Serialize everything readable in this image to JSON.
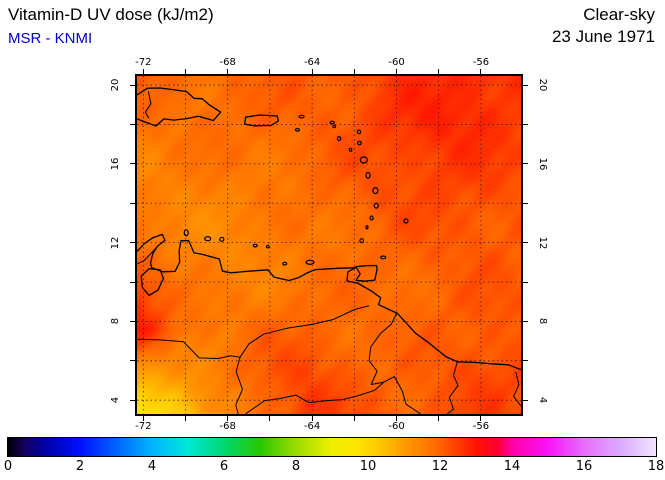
{
  "header": {
    "title": "Vitamin-D UV dose (kJ/m2)",
    "source": "MSR - KNMI",
    "condition": "Clear-sky",
    "date": "23 June 1971"
  },
  "chart_data": {
    "type": "heatmap",
    "title": "Vitamin-D UV dose (kJ/m2)",
    "subtitle": "MSR - KNMI",
    "condition": "Clear-sky",
    "date": "23 June 1971",
    "units": "kJ/m2",
    "lon_range": [
      -72.3,
      -54.1
    ],
    "lat_range": [
      3.3,
      20.46
    ],
    "tick_step_deg": 2,
    "lon_tick_labels": [
      "-72",
      "-68",
      "-64",
      "-60",
      "-56"
    ],
    "lon_tick_values": [
      -72,
      -68,
      -64,
      -60,
      -56
    ],
    "lat_tick_labels": [
      "20",
      "16",
      "12",
      "8",
      "4"
    ],
    "lat_tick_values": [
      20,
      16,
      12,
      8,
      4
    ],
    "grid": {
      "lons": [
        -72.3,
        -70.28,
        -68.26,
        -66.23,
        -64.21,
        -62.19,
        -60.17,
        -58.14,
        -56.12,
        -54.1
      ],
      "lats": [
        20.46,
        18.31,
        16.17,
        14.02,
        11.88,
        9.73,
        7.59,
        5.44,
        3.3
      ],
      "values": [
        [
          12.0,
          11.9,
          11.9,
          12.0,
          12.1,
          12.2,
          12.5,
          12.7,
          12.8,
          12.6
        ],
        [
          11.8,
          11.8,
          11.9,
          11.9,
          12.0,
          12.2,
          12.6,
          12.8,
          12.8,
          12.5
        ],
        [
          11.6,
          11.6,
          11.7,
          11.8,
          11.9,
          12.1,
          12.4,
          12.6,
          12.5,
          12.3
        ],
        [
          11.5,
          11.5,
          11.5,
          11.6,
          11.8,
          12.0,
          12.2,
          12.3,
          12.3,
          12.2
        ],
        [
          11.7,
          11.5,
          11.4,
          11.5,
          11.7,
          11.8,
          12.0,
          12.1,
          12.2,
          12.1
        ],
        [
          12.6,
          11.7,
          11.5,
          11.6,
          11.8,
          11.8,
          11.9,
          12.0,
          12.1,
          12.1
        ],
        [
          12.9,
          11.9,
          11.7,
          11.9,
          12.0,
          11.9,
          11.9,
          12.0,
          12.2,
          12.2
        ],
        [
          10.9,
          11.3,
          11.7,
          12.1,
          12.4,
          12.1,
          11.9,
          12.1,
          12.4,
          12.3
        ],
        [
          9.7,
          10.1,
          11.2,
          12.0,
          12.6,
          12.2,
          12.0,
          12.2,
          12.4,
          12.3
        ]
      ]
    },
    "colorbar": {
      "min": 0,
      "max": 18,
      "tick_labels": [
        "0",
        "2",
        "4",
        "6",
        "8",
        "10",
        "12",
        "14",
        "16",
        "18"
      ],
      "tick_values": [
        0,
        2,
        4,
        6,
        8,
        10,
        12,
        14,
        16,
        18
      ],
      "stops": [
        [
          0,
          "#000000"
        ],
        [
          0.5,
          "#16006a"
        ],
        [
          1,
          "#0000a0"
        ],
        [
          2,
          "#0010ff"
        ],
        [
          3,
          "#0064ff"
        ],
        [
          4,
          "#00b4ff"
        ],
        [
          5,
          "#00e8d8"
        ],
        [
          6,
          "#00d870"
        ],
        [
          7,
          "#28c800"
        ],
        [
          8,
          "#9cdc00"
        ],
        [
          9,
          "#f0f000"
        ],
        [
          9.7,
          "#ffe400"
        ],
        [
          10.3,
          "#ffc800"
        ],
        [
          11,
          "#ff9c00"
        ],
        [
          11.5,
          "#ff8200"
        ],
        [
          12,
          "#ff6400"
        ],
        [
          12.5,
          "#ff3c00"
        ],
        [
          13,
          "#ff1400"
        ],
        [
          13.6,
          "#fb0030"
        ],
        [
          14,
          "#ff00a8"
        ],
        [
          15,
          "#f814f8"
        ],
        [
          16,
          "#e66efc"
        ],
        [
          17,
          "#dcaafe"
        ],
        [
          18,
          "#f2e6ff"
        ]
      ]
    }
  },
  "geo": {
    "coastlines": [
      {
        "name": "hispaniola",
        "closed": false,
        "pts": [
          [
            -72.3,
            19.5
          ],
          [
            -71.8,
            19.84
          ],
          [
            -71.2,
            19.85
          ],
          [
            -70.6,
            19.77
          ],
          [
            -69.95,
            19.67
          ],
          [
            -69.6,
            19.33
          ],
          [
            -69.2,
            19.3
          ],
          [
            -68.9,
            19.02
          ],
          [
            -68.34,
            18.62
          ],
          [
            -68.68,
            18.2
          ],
          [
            -69.4,
            18.42
          ],
          [
            -69.9,
            18.3
          ],
          [
            -70.55,
            18.22
          ],
          [
            -71.03,
            18.28
          ],
          [
            -71.4,
            17.92
          ],
          [
            -71.9,
            18.12
          ],
          [
            -72.3,
            18.28
          ]
        ]
      },
      {
        "name": "puerto-rico",
        "closed": true,
        "pts": [
          [
            -67.15,
            18.37
          ],
          [
            -66.5,
            18.48
          ],
          [
            -65.65,
            18.43
          ],
          [
            -65.6,
            18.18
          ],
          [
            -65.95,
            17.95
          ],
          [
            -66.75,
            17.93
          ],
          [
            -67.2,
            18.02
          ]
        ]
      },
      {
        "name": "trinidad",
        "closed": true,
        "pts": [
          [
            -61.93,
            10.78
          ],
          [
            -61.45,
            10.83
          ],
          [
            -60.95,
            10.84
          ],
          [
            -60.92,
            10.66
          ],
          [
            -61.03,
            10.1
          ],
          [
            -61.5,
            10.04
          ],
          [
            -61.92,
            10.09
          ],
          [
            -61.72,
            10.42
          ]
        ]
      },
      {
        "name": "south-america-coast",
        "closed": false,
        "pts": [
          [
            -72.3,
            11.55
          ],
          [
            -71.95,
            11.95
          ],
          [
            -71.55,
            12.25
          ],
          [
            -71.1,
            12.42
          ],
          [
            -70.98,
            12.12
          ],
          [
            -71.33,
            11.82
          ],
          [
            -71.55,
            11.45
          ],
          [
            -71.66,
            10.95
          ],
          [
            -71.6,
            10.73
          ],
          [
            -71.1,
            10.52
          ],
          [
            -70.5,
            10.54
          ],
          [
            -70.28,
            11.0
          ],
          [
            -70.3,
            11.6
          ],
          [
            -70.22,
            12.1
          ],
          [
            -69.85,
            12.1
          ],
          [
            -69.6,
            11.48
          ],
          [
            -69.25,
            11.42
          ],
          [
            -68.4,
            11.17
          ],
          [
            -68.25,
            10.55
          ],
          [
            -67.85,
            10.47
          ],
          [
            -67.0,
            10.55
          ],
          [
            -66.1,
            10.62
          ],
          [
            -65.8,
            10.25
          ],
          [
            -65.1,
            10.08
          ],
          [
            -64.65,
            10.22
          ],
          [
            -64.2,
            10.48
          ],
          [
            -63.85,
            10.63
          ],
          [
            -62.7,
            10.7
          ],
          [
            -61.95,
            10.72
          ],
          [
            -62.3,
            10.52
          ],
          [
            -62.35,
            10.05
          ],
          [
            -61.85,
            9.95
          ],
          [
            -61.2,
            9.55
          ],
          [
            -60.75,
            9.2
          ],
          [
            -60.85,
            8.85
          ],
          [
            -59.95,
            8.4
          ],
          [
            -59.1,
            7.4
          ],
          [
            -58.45,
            6.9
          ],
          [
            -57.65,
            6.2
          ],
          [
            -57.1,
            5.95
          ],
          [
            -56.3,
            5.92
          ],
          [
            -55.5,
            5.85
          ],
          [
            -54.7,
            5.8
          ],
          [
            -54.1,
            5.55
          ]
        ]
      },
      {
        "name": "lake-maracaibo",
        "closed": true,
        "pts": [
          [
            -71.72,
            10.68
          ],
          [
            -71.2,
            10.62
          ],
          [
            -71.05,
            10.18
          ],
          [
            -71.3,
            9.6
          ],
          [
            -71.72,
            9.32
          ],
          [
            -72.05,
            9.72
          ],
          [
            -72.1,
            10.3
          ]
        ]
      }
    ],
    "borders": [
      {
        "name": "haiti-dr",
        "pts": [
          [
            -71.76,
            19.68
          ],
          [
            -71.64,
            19.05
          ],
          [
            -71.9,
            18.62
          ],
          [
            -71.74,
            18.32
          ]
        ]
      },
      {
        "name": "col-ven-north",
        "pts": [
          [
            -71.32,
            11.82
          ],
          [
            -71.95,
            11.1
          ],
          [
            -72.3,
            10.92
          ]
        ]
      },
      {
        "name": "col-ven-south",
        "pts": [
          [
            -72.3,
            7.1
          ],
          [
            -71.2,
            7.06
          ],
          [
            -70.1,
            6.97
          ],
          [
            -69.35,
            6.15
          ],
          [
            -68.45,
            6.12
          ],
          [
            -67.85,
            6.26
          ],
          [
            -67.42,
            6.18
          ],
          [
            -67.6,
            5.45
          ],
          [
            -67.3,
            4.55
          ],
          [
            -67.62,
            3.75
          ],
          [
            -67.5,
            3.3
          ]
        ]
      },
      {
        "name": "ven-bra",
        "pts": [
          [
            -67.16,
            3.3
          ],
          [
            -66.25,
            3.98
          ],
          [
            -65.55,
            4.08
          ],
          [
            -64.78,
            4.26
          ],
          [
            -64.15,
            3.88
          ],
          [
            -63.3,
            3.98
          ],
          [
            -62.55,
            4.03
          ],
          [
            -61.85,
            4.22
          ],
          [
            -61.05,
            4.5
          ],
          [
            -60.6,
            4.92
          ]
        ]
      },
      {
        "name": "ven-guy",
        "pts": [
          [
            -59.98,
            8.45
          ],
          [
            -60.25,
            7.85
          ],
          [
            -60.75,
            7.4
          ],
          [
            -61.22,
            6.7
          ],
          [
            -61.3,
            6.0
          ],
          [
            -60.92,
            5.48
          ],
          [
            -61.2,
            4.8
          ],
          [
            -60.6,
            4.92
          ]
        ]
      },
      {
        "name": "guy-bra",
        "pts": [
          [
            -60.6,
            4.92
          ],
          [
            -60.1,
            5.2
          ],
          [
            -59.72,
            4.45
          ],
          [
            -59.55,
            3.8
          ],
          [
            -58.85,
            3.3
          ]
        ]
      },
      {
        "name": "guy-sur",
        "pts": [
          [
            -57.12,
            5.95
          ],
          [
            -57.3,
            5.25
          ],
          [
            -57.08,
            4.75
          ],
          [
            -57.5,
            4.15
          ],
          [
            -57.3,
            3.55
          ],
          [
            -57.6,
            3.3
          ]
        ]
      },
      {
        "name": "sur-fg",
        "pts": [
          [
            -54.35,
            5.45
          ],
          [
            -54.2,
            4.8
          ],
          [
            -54.45,
            4.2
          ],
          [
            -54.1,
            3.7
          ]
        ]
      },
      {
        "name": "orinoco-river",
        "pts": [
          [
            -61.3,
            8.8
          ],
          [
            -62.0,
            8.6
          ],
          [
            -63.0,
            8.1
          ],
          [
            -64.0,
            7.85
          ],
          [
            -65.2,
            7.65
          ],
          [
            -66.3,
            7.35
          ],
          [
            -67.0,
            6.85
          ],
          [
            -67.42,
            6.18
          ]
        ]
      }
    ],
    "small_islands": [
      [
        -69.97,
        12.5,
        2,
        3
      ],
      [
        -68.95,
        12.2,
        3,
        2
      ],
      [
        -68.28,
        12.17,
        2,
        2
      ],
      [
        -66.7,
        11.85,
        2,
        1.3
      ],
      [
        -66.1,
        11.8,
        1.3,
        1.3
      ],
      [
        -65.3,
        10.93,
        2,
        1.3
      ],
      [
        -64.1,
        11.0,
        4,
        2
      ],
      [
        -64.7,
        17.73,
        2,
        1.3
      ],
      [
        -64.5,
        18.4,
        2.5,
        1.3
      ],
      [
        -63.05,
        18.1,
        2,
        1.3
      ],
      [
        -62.95,
        17.9,
        1.3,
        1.3
      ],
      [
        -62.72,
        17.28,
        1.6,
        2
      ],
      [
        -61.78,
        17.62,
        1.6,
        1.8
      ],
      [
        -61.76,
        17.06,
        1.8,
        1.8
      ],
      [
        -62.18,
        16.72,
        1.3,
        1.5
      ],
      [
        -61.55,
        16.2,
        3.5,
        3
      ],
      [
        -61.35,
        15.42,
        2,
        3
      ],
      [
        -61.0,
        14.64,
        2.5,
        3
      ],
      [
        -60.96,
        13.88,
        2,
        2.5
      ],
      [
        -61.18,
        13.25,
        1.5,
        2
      ],
      [
        -61.4,
        12.78,
        1,
        1.6
      ],
      [
        -61.65,
        12.1,
        1.8,
        2
      ],
      [
        -59.55,
        13.1,
        2,
        2
      ],
      [
        -60.63,
        11.25,
        2.5,
        1.4
      ]
    ]
  }
}
